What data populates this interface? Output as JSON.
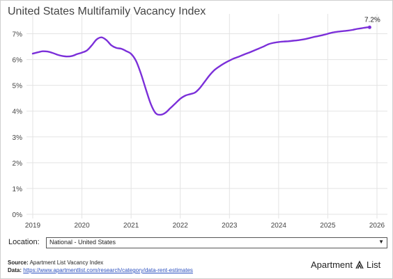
{
  "title": "United States Multifamily Vacancy Index",
  "location": {
    "label": "Location:",
    "selected": "National - United States"
  },
  "source": {
    "source_label": "Source:",
    "source_text": "Apartment List Vacancy Index",
    "data_label": "Data:",
    "data_link": "https://www.apartmentlist.com/research/category/data-rent-estimates"
  },
  "brand": {
    "left": "Apartment",
    "right": "List",
    "icon": "apartment-list-logo-icon"
  },
  "colors": {
    "line": "#7b2fd9",
    "grid": "#e3e3e3",
    "text": "#444444"
  },
  "chart_data": {
    "type": "line",
    "title": "United States Multifamily Vacancy Index",
    "xlabel": "",
    "ylabel": "",
    "xlim": [
      2019,
      2026
    ],
    "ylim": [
      0,
      7.5
    ],
    "x_ticks": [
      2019,
      2020,
      2021,
      2022,
      2023,
      2024,
      2025,
      2026
    ],
    "y_ticks": [
      0,
      1,
      2,
      3,
      4,
      5,
      6,
      7
    ],
    "y_tick_labels": [
      "0%",
      "1%",
      "2%",
      "3%",
      "4%",
      "5%",
      "6%",
      "7%"
    ],
    "grid": true,
    "end_label": "7.2%",
    "series": [
      {
        "x": [
          2019.0,
          2019.1,
          2019.2,
          2019.3,
          2019.4,
          2019.5,
          2019.6,
          2019.7,
          2019.8,
          2019.9,
          2020.0,
          2020.1,
          2020.2,
          2020.3,
          2020.4,
          2020.5,
          2020.6,
          2020.7,
          2020.8,
          2020.9,
          2021.0,
          2021.1,
          2021.2,
          2021.3,
          2021.4,
          2021.5,
          2021.6,
          2021.7,
          2021.8,
          2021.9,
          2022.0,
          2022.1,
          2022.2,
          2022.3,
          2022.4,
          2022.5,
          2022.6,
          2022.7,
          2022.8,
          2022.9,
          2023.0,
          2023.1,
          2023.2,
          2023.3,
          2023.4,
          2023.5,
          2023.6,
          2023.7,
          2023.8,
          2023.9,
          2024.0,
          2024.1,
          2024.2,
          2024.3,
          2024.4,
          2024.5,
          2024.6,
          2024.7,
          2024.8,
          2024.9,
          2025.0,
          2025.1,
          2025.2,
          2025.3,
          2025.4,
          2025.5,
          2025.6,
          2025.7,
          2025.8,
          2025.85
        ],
        "y": [
          6.23,
          6.28,
          6.32,
          6.31,
          6.26,
          6.19,
          6.14,
          6.12,
          6.14,
          6.21,
          6.27,
          6.35,
          6.55,
          6.78,
          6.86,
          6.75,
          6.55,
          6.45,
          6.42,
          6.33,
          6.22,
          5.95,
          5.45,
          4.85,
          4.28,
          3.92,
          3.86,
          3.94,
          4.12,
          4.3,
          4.48,
          4.6,
          4.66,
          4.72,
          4.9,
          5.15,
          5.4,
          5.6,
          5.74,
          5.86,
          5.96,
          6.05,
          6.12,
          6.2,
          6.27,
          6.35,
          6.43,
          6.51,
          6.6,
          6.65,
          6.68,
          6.7,
          6.71,
          6.73,
          6.75,
          6.78,
          6.82,
          6.87,
          6.91,
          6.95,
          7.0,
          7.05,
          7.08,
          7.1,
          7.12,
          7.15,
          7.19,
          7.22,
          7.25,
          7.25
        ]
      }
    ]
  }
}
